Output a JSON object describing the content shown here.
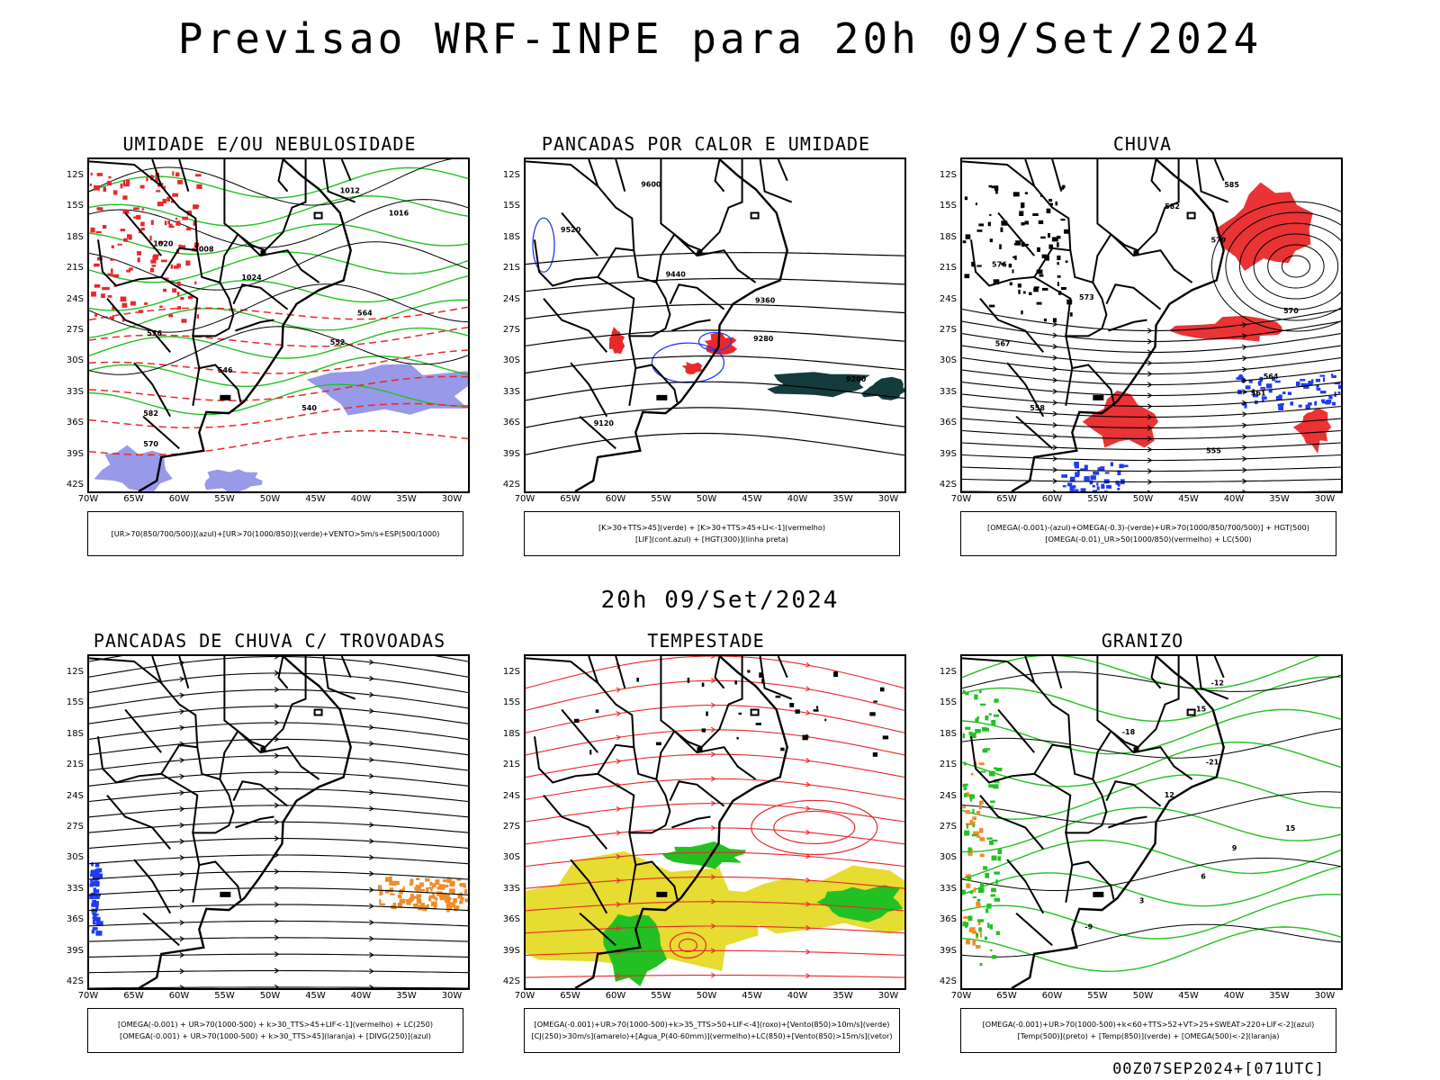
{
  "main_title": "Previsao WRF-INPE  para 20h 09/Set/2024",
  "mid_title": "20h 09/Set/2024",
  "footer": "00Z07SEP2024+[071UTC]",
  "lat_labels": [
    "12S",
    "15S",
    "18S",
    "21S",
    "24S",
    "27S",
    "30S",
    "33S",
    "36S",
    "39S",
    "42S"
  ],
  "lon_labels": [
    "70W",
    "65W",
    "60W",
    "55W",
    "50W",
    "45W",
    "40W",
    "35W",
    "30W"
  ],
  "colors": {
    "red": "#e8282a",
    "green": "#22c022",
    "blue": "#1e3cf0",
    "lavender": "#8e8ee8",
    "dark_teal": "#143c3c",
    "yellow": "#e6dc32",
    "orange": "#f08c28"
  },
  "panels": [
    {
      "id": "umidade",
      "title": "UMIDADE E/OU NEBULOSIDADE",
      "legend_lines": [
        "[UR>70(850/700/500)](azul)+[UR>70(1000/850)](verde)+VENTO>5m/s+ESP(500/1000)"
      ],
      "contour_labels": [
        "1012",
        "1016",
        "1020",
        "1008",
        "1024",
        "564",
        "576",
        "552",
        "546",
        "540",
        "582",
        "570"
      ]
    },
    {
      "id": "pancadas_calor",
      "title": "PANCADAS POR CALOR E UMIDADE",
      "legend_lines": [
        "[K>30+TTS>45](verde) + [K>30+TTS>45+LI<-1](vermelho)",
        "[LIF](cont.azul) + [HGT(300)](linha preta)"
      ],
      "contour_labels": [
        "9600",
        "9520",
        "9440",
        "9360",
        "9280",
        "9200",
        "9120"
      ]
    },
    {
      "id": "chuva",
      "title": "CHUVA",
      "legend_lines": [
        "[OMEGA(-0.001)-(azul)+OMEGA(-0.3)-(verde)+UR>70(1000/850/700/500)] + HGT(500)",
        "[OMEGA(-0.01)_UR>50(1000/850)(vermelho) + LC(500)"
      ],
      "contour_labels": [
        "585",
        "582",
        "579",
        "576",
        "573",
        "570",
        "567",
        "564",
        "561",
        "558",
        "555"
      ]
    },
    {
      "id": "pancadas_trovoadas",
      "title": "PANCADAS DE CHUVA C/ TROVOADAS",
      "legend_lines": [
        "[OMEGA(-0.001) + UR>70(1000-500) + k>30_TTS>45+LIF<-1](vermelho) + LC(250)",
        "[OMEGA(-0.001) + UR>70(1000-500) + k>30_TTS>45](laranja) + [DIVG(250)](azul)"
      ],
      "contour_labels": []
    },
    {
      "id": "tempestade",
      "title": "TEMPESTADE",
      "legend_lines": [
        "[OMEGA(-0.001)+UR>70(1000-500)+k>35_TTS>50+LIF<-4](roxo)+[Vento(850)>10m/s](verde)",
        "[CJ(250)>30m/s](amarelo)+[Agua_P(40-60mm)](vermelho)+LC(850)+[Vento(850)>15m/s](vetor)"
      ],
      "contour_labels": []
    },
    {
      "id": "granizo",
      "title": "GRANIZO",
      "legend_lines": [
        "[OMEGA(-0.001)+UR>70(1000-500)+k<60+TTS>52+VT>25+SWEAT>220+LIF<-2](azul)",
        "[Temp(500)](preto) + [Temp(850)](verde) + [OMEGA(500)<-2](laranja)"
      ],
      "contour_labels": [
        "-12",
        "-15",
        "-18",
        "-21",
        "12",
        "15",
        "9",
        "6",
        "3",
        "-9"
      ]
    }
  ]
}
